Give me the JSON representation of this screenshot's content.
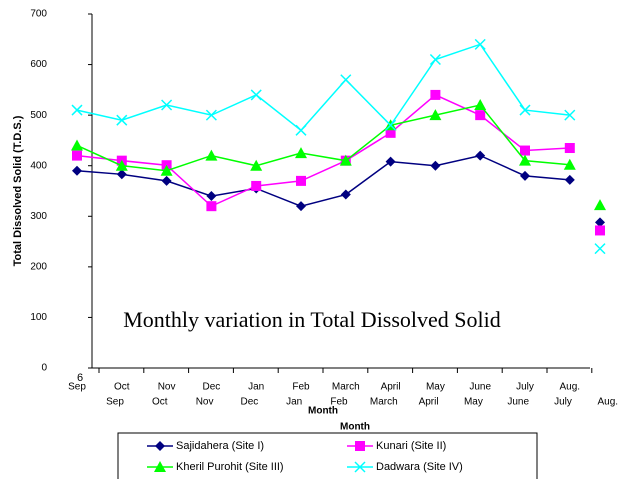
{
  "chart_data": {
    "type": "line",
    "title": "Monthly variation in Total Dissolved Solid",
    "y_label": "Total Dissolved Solid (T.D.S.)",
    "x_label": "Month",
    "x_label_2": "Month",
    "corner_label": "6",
    "categories": [
      "Sep",
      "Oct",
      "Nov",
      "Dec",
      "Jan",
      "Feb",
      "March",
      "April",
      "May",
      "June",
      "July",
      "Aug."
    ],
    "categories_row2": [
      "Sep",
      "Oct",
      "Nov",
      "Dec",
      "Jan",
      "Feb",
      "March",
      "April",
      "May",
      "June",
      "July",
      "Aug."
    ],
    "ylim": [
      0,
      700
    ],
    "yticks": [
      0,
      100,
      200,
      300,
      400,
      500,
      600,
      700
    ],
    "series": [
      {
        "name": "Sajidahera (Site I)",
        "color": "#000080",
        "marker": "diamond",
        "values": [
          390,
          383,
          370,
          340,
          355,
          320,
          343,
          408,
          400,
          420,
          380,
          372
        ],
        "overlay_value": 288
      },
      {
        "name": "Kunari (Site II)",
        "color": "#ff00ff",
        "marker": "square",
        "values": [
          420,
          410,
          401,
          320,
          360,
          370,
          410,
          465,
          540,
          500,
          430,
          435
        ],
        "overlay_value": 272
      },
      {
        "name": "Kheril Purohit (Site III)",
        "color": "#00ff00",
        "marker": "triangle",
        "values": [
          440,
          400,
          390,
          420,
          400,
          425,
          410,
          480,
          500,
          520,
          410,
          402
        ],
        "overlay_value": 322
      },
      {
        "name": "Dadwara (Site IV)",
        "color": "#00ffff",
        "marker": "x",
        "values": [
          510,
          490,
          520,
          500,
          540,
          470,
          570,
          480,
          610,
          640,
          510,
          500
        ],
        "overlay_value": 236
      }
    ]
  }
}
